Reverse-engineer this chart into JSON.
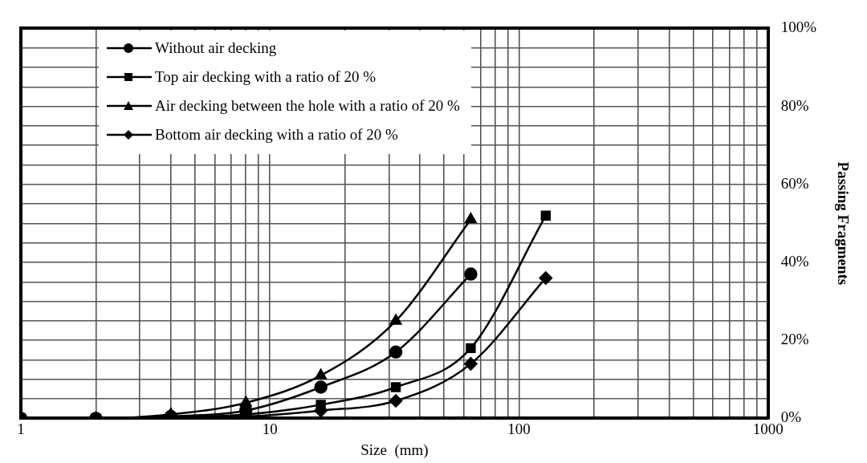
{
  "chart_data": {
    "type": "line",
    "xlabel": "Size  (mm)",
    "ylabel": "Passing Fragments",
    "log": "x",
    "series": [
      {
        "name": "Without air decking",
        "color": "#000000",
        "marker": "circle",
        "x": [
          1,
          2,
          4,
          8,
          16,
          32,
          64
        ],
        "values": [
          0,
          0,
          0.5,
          2,
          8,
          17,
          37
        ]
      },
      {
        "name": "Top air decking with a ratio of 20 %",
        "color": "#000000",
        "marker": "square",
        "x": [
          1,
          2,
          4,
          8,
          16,
          32,
          64,
          128
        ],
        "values": [
          0,
          0,
          0.3,
          1,
          3.5,
          8,
          18,
          52
        ]
      },
      {
        "name": "Air decking between the hole with a ratio of 20 %",
        "color": "#000000",
        "marker": "triangle",
        "x": [
          1,
          2,
          4,
          8,
          16,
          32,
          64
        ],
        "values": [
          0,
          0,
          1,
          4,
          11,
          25,
          51
        ]
      },
      {
        "name": "Bottom air decking with a ratio of 20 %",
        "color": "#000000",
        "marker": "diamond",
        "x": [
          1,
          2,
          4,
          8,
          16,
          32,
          64,
          128
        ],
        "values": [
          0,
          0,
          0.2,
          0.5,
          2,
          4.5,
          14,
          36
        ]
      }
    ],
    "xlim": [
      1,
      1000
    ],
    "xticks": [
      1,
      {
        "value": 2,
        "label": null
      },
      {
        "value": 3,
        "label": null
      },
      {
        "value": 4,
        "label": null
      },
      {
        "value": 5,
        "label": null
      },
      {
        "value": 6,
        "label": null
      },
      {
        "value": 7,
        "label": null
      },
      {
        "value": 8,
        "label": null
      },
      {
        "value": 9,
        "label": null
      },
      10,
      {
        "value": 20,
        "label": null
      },
      {
        "value": 30,
        "label": null
      },
      {
        "value": 40,
        "label": null
      },
      {
        "value": 50,
        "label": null
      },
      {
        "value": 60,
        "label": null
      },
      {
        "value": 70,
        "label": null
      },
      {
        "value": 80,
        "label": null
      },
      {
        "value": 90,
        "label": null
      },
      100,
      {
        "value": 200,
        "label": null
      },
      {
        "value": 300,
        "label": null
      },
      {
        "value": 400,
        "label": null
      },
      {
        "value": 500,
        "label": null
      },
      {
        "value": 600,
        "label": null
      },
      {
        "value": 700,
        "label": null
      },
      {
        "value": 800,
        "label": null
      },
      {
        "value": 900,
        "label": null
      },
      1000
    ],
    "ylim": [
      0,
      100
    ],
    "yticks": [
      {
        "value": 0,
        "label": "0%"
      },
      {
        "value": 5,
        "label": null
      },
      {
        "value": 10,
        "label": null
      },
      {
        "value": 15,
        "label": null
      },
      {
        "value": 20,
        "label": "20%"
      },
      {
        "value": 25,
        "label": null
      },
      {
        "value": 30,
        "label": null
      },
      {
        "value": 35,
        "label": null
      },
      {
        "value": 40,
        "label": "40%"
      },
      {
        "value": 45,
        "label": null
      },
      {
        "value": 50,
        "label": null
      },
      {
        "value": 55,
        "label": null
      },
      {
        "value": 60,
        "label": "60%"
      },
      {
        "value": 65,
        "label": null
      },
      {
        "value": 70,
        "label": null
      },
      {
        "value": 75,
        "label": null
      },
      {
        "value": 80,
        "label": "80%"
      },
      {
        "value": 85,
        "label": null
      },
      {
        "value": 90,
        "label": null
      },
      {
        "value": 95,
        "label": null
      },
      {
        "value": 100,
        "label": "100%"
      }
    ],
    "grid": true,
    "legend": "top left",
    "line_style": "solid"
  }
}
